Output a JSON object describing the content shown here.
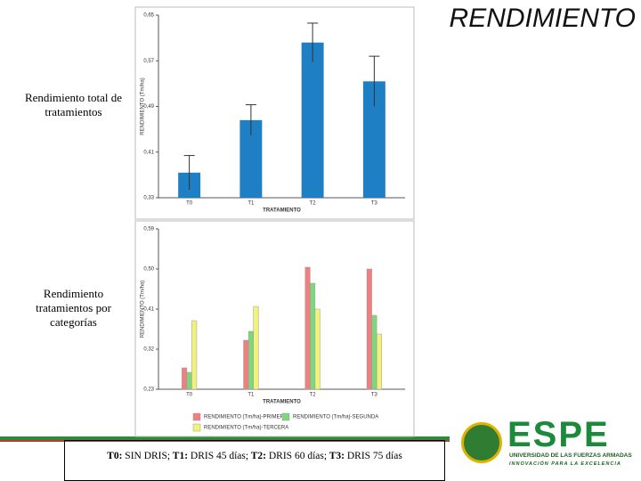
{
  "slide": {
    "title": "RENDIMIENTO",
    "labels": [
      "Rendimiento total de tratamientos",
      "Rendimiento tratamientos por categorías"
    ],
    "footnote": [
      {
        "code": "T0:",
        "text": " SIN DRIS;"
      },
      {
        "code": " T1:",
        "text": " DRIS 45 días;"
      },
      {
        "code": " T2:",
        "text": " DRIS 60 días;"
      },
      {
        "code": " T3:",
        "text": " DRIS 75 días"
      }
    ],
    "logo": {
      "name": "ESPE",
      "university": "UNIVERSIDAD DE LAS FUERZAS ARMADAS",
      "motto": "INNOVACIÓN PARA LA EXCELENCIA"
    }
  },
  "chart_data": [
    {
      "type": "bar",
      "x_label": "TRATAMIENTO",
      "y_label": "RENDIMIENTO (Tm/ha)",
      "categories": [
        "T0",
        "T1",
        "T2",
        "T3"
      ],
      "values": [
        0.374,
        0.466,
        0.602,
        0.534
      ],
      "errors": [
        0.03,
        0.027,
        0.034,
        0.044
      ],
      "color": "#1f7fc4",
      "ylim": [
        0.33,
        0.65
      ],
      "yticks": [
        {
          "value": 0.33,
          "label": "0,33"
        },
        {
          "value": 0.41,
          "label": "0,41"
        },
        {
          "value": 0.49,
          "label": "0,49"
        },
        {
          "value": 0.57,
          "label": "0,57"
        },
        {
          "value": 0.65,
          "label": "0,65"
        }
      ]
    },
    {
      "type": "grouped-bar",
      "x_label": "TRATAMIENTO",
      "y_label": "RENDIMIENTO (Tm/ha)",
      "categories": [
        "T0",
        "T1",
        "T2",
        "T3"
      ],
      "series": [
        {
          "name": "RENDIMIENTO (Tm/ha)-PRIMERA",
          "color": "#f08080",
          "values": [
            0.278,
            0.34,
            0.504,
            0.5
          ]
        },
        {
          "name": "RENDIMIENTO (Tm/ha)-SEGUNDA",
          "color": "#7ed67e",
          "values": [
            0.268,
            0.36,
            0.468,
            0.396
          ]
        },
        {
          "name": "RENDIMIENTO (Tm/ha)-TERCERA",
          "color": "#f2f27a",
          "values": [
            0.384,
            0.416,
            0.41,
            0.354
          ]
        }
      ],
      "ylim": [
        0.23,
        0.59
      ],
      "yticks": [
        {
          "value": 0.23,
          "label": "0,23"
        },
        {
          "value": 0.32,
          "label": "0,32"
        },
        {
          "value": 0.41,
          "label": "0,41"
        },
        {
          "value": 0.5,
          "label": "0,50"
        },
        {
          "value": 0.59,
          "label": "0,59"
        }
      ]
    }
  ]
}
